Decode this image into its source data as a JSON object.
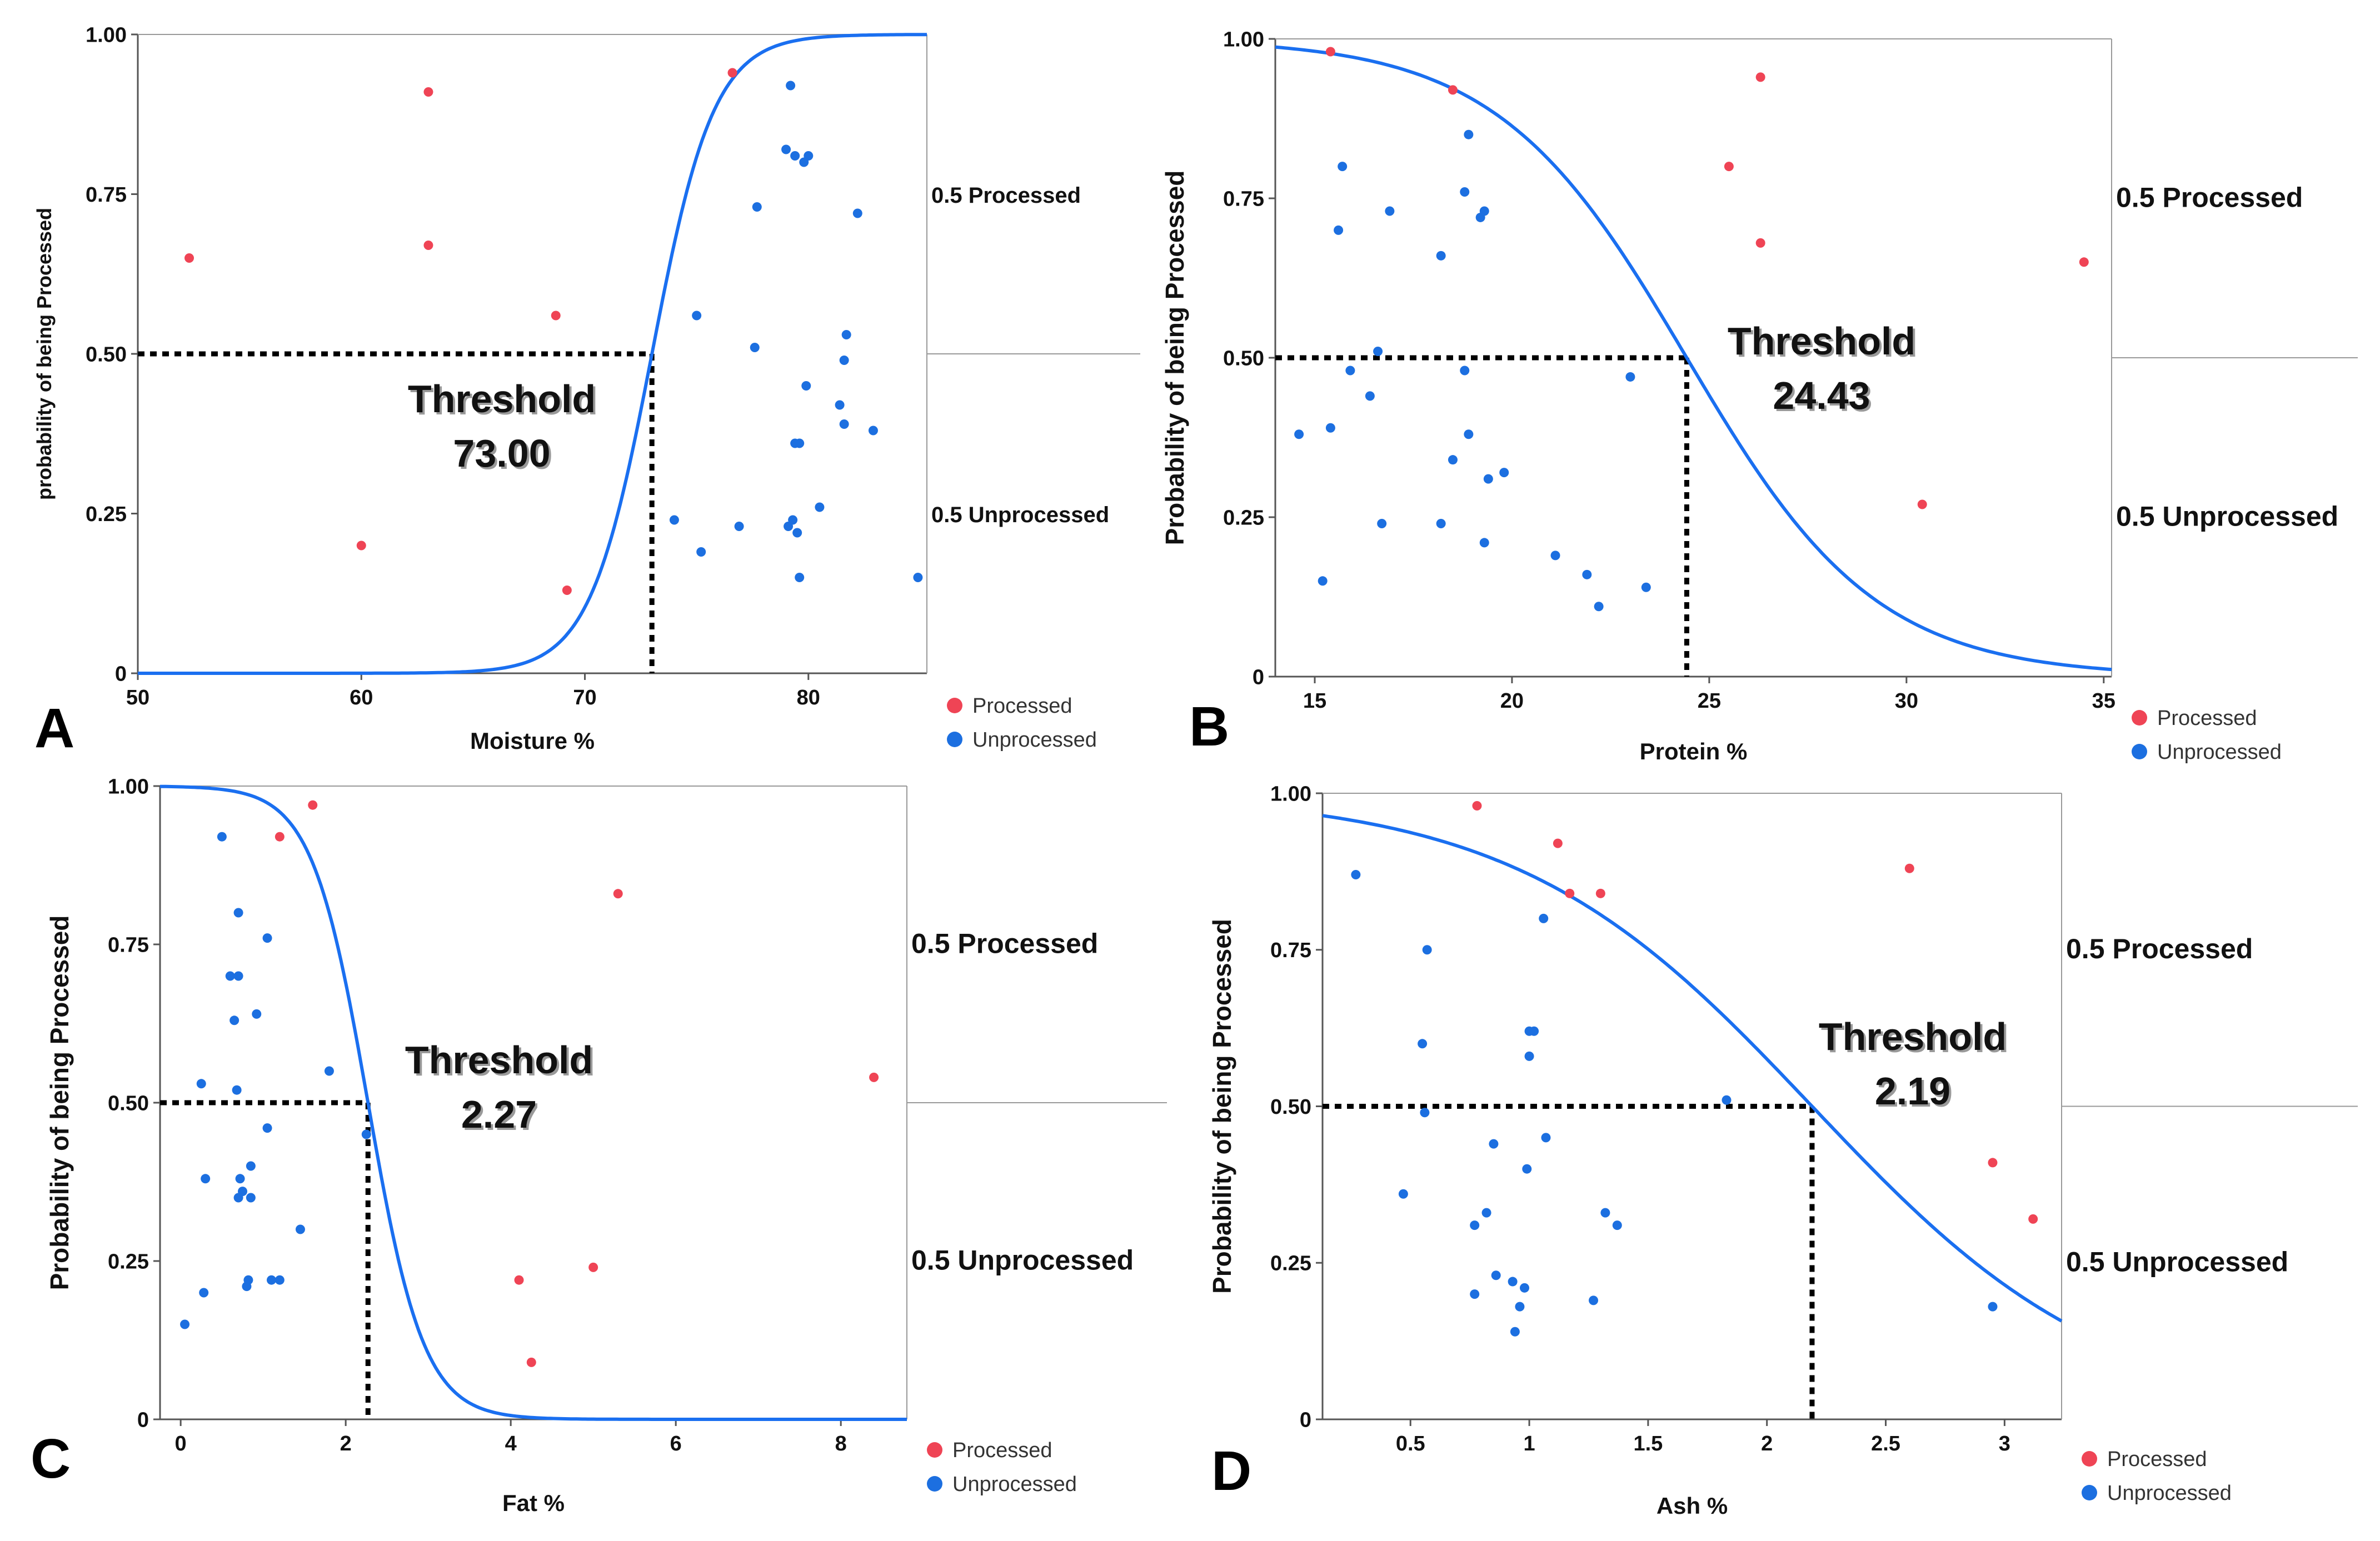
{
  "legend": {
    "processed": "Processed",
    "unprocessed": "Unprocessed"
  },
  "colors": {
    "processed": "#ef4455",
    "unprocessed": "#1c6fe0",
    "curve": "#1a6ff0",
    "axis": "#555555",
    "frame": "#999999"
  },
  "chart_data": [
    {
      "id": "A",
      "panel_letter": "A",
      "type": "scatter",
      "xlabel": "Moisture %",
      "ylabel": "probability of being Processed",
      "xlim": [
        50,
        85.3
      ],
      "ylim": [
        0,
        1
      ],
      "x_ticks": [
        50,
        60,
        70,
        80
      ],
      "y_ticks": [
        0,
        0.25,
        0.5,
        0.75,
        1
      ],
      "x_tick_labels": [
        "50",
        "60",
        "70",
        "80"
      ],
      "y_tick_labels": [
        "0",
        "0.25",
        "0.50",
        "0.75",
        "1.00"
      ],
      "right_labels": {
        "upper": "0.5 Processed",
        "lower": "0.5 Unprocessed"
      },
      "threshold": {
        "title": "Threshold",
        "value_label": "73.00",
        "x": 73.0,
        "y": 0.5
      },
      "curve": {
        "x0": 73.0,
        "k": 0.72
      },
      "series": [
        {
          "name": "Processed",
          "x": [
            52.3,
            63.0,
            63.0,
            68.7,
            69.2,
            60.0,
            76.6
          ],
          "y": [
            0.65,
            0.91,
            0.67,
            0.56,
            0.13,
            0.2,
            0.94
          ]
        },
        {
          "name": "Unprocessed",
          "x": [
            79.2,
            79.0,
            79.4,
            80.0,
            79.8,
            77.7,
            82.2,
            75.0,
            77.6,
            81.7,
            81.6,
            79.9,
            81.4,
            81.6,
            82.9,
            79.6,
            79.4,
            80.5,
            74.0,
            76.9,
            79.3,
            79.1,
            79.5,
            75.2,
            79.6,
            84.9
          ],
          "y": [
            0.92,
            0.82,
            0.81,
            0.81,
            0.8,
            0.73,
            0.72,
            0.56,
            0.51,
            0.53,
            0.49,
            0.45,
            0.42,
            0.39,
            0.38,
            0.36,
            0.36,
            0.26,
            0.24,
            0.23,
            0.24,
            0.23,
            0.22,
            0.19,
            0.15,
            0.15
          ]
        }
      ]
    },
    {
      "id": "B",
      "panel_letter": "B",
      "type": "scatter",
      "xlabel": "Protein %",
      "ylabel": "Probability of being Processed",
      "xlim": [
        14.0,
        35.2
      ],
      "ylim": [
        0,
        1
      ],
      "x_ticks": [
        15,
        20,
        25,
        30,
        35
      ],
      "y_ticks": [
        0,
        0.25,
        0.5,
        0.75,
        1
      ],
      "x_tick_labels": [
        "15",
        "20",
        "25",
        "30",
        "35"
      ],
      "y_tick_labels": [
        "0",
        "0.25",
        "0.50",
        "0.75",
        "1.00"
      ],
      "right_labels": {
        "upper": "0.5 Processed",
        "lower": "0.5 Unprocessed"
      },
      "threshold": {
        "title": "Threshold",
        "value_label": "24.43",
        "x": 24.43,
        "y": 0.5
      },
      "curve": {
        "x0": 24.43,
        "k": -0.416
      },
      "series": [
        {
          "name": "Processed",
          "x": [
            15.4,
            18.5,
            26.3,
            25.5,
            26.3,
            34.5,
            30.4
          ],
          "y": [
            0.98,
            0.92,
            0.94,
            0.8,
            0.68,
            0.65,
            0.27
          ]
        },
        {
          "name": "Unprocessed",
          "x": [
            18.9,
            15.7,
            18.8,
            19.3,
            19.2,
            16.9,
            15.6,
            18.2,
            16.6,
            15.9,
            18.8,
            16.4,
            23.0,
            14.6,
            15.4,
            18.9,
            18.5,
            19.8,
            19.4,
            16.7,
            18.2,
            19.3,
            21.1,
            21.9,
            23.4,
            15.2,
            22.2
          ],
          "y": [
            0.85,
            0.8,
            0.76,
            0.73,
            0.72,
            0.73,
            0.7,
            0.66,
            0.51,
            0.48,
            0.48,
            0.44,
            0.47,
            0.38,
            0.39,
            0.38,
            0.34,
            0.32,
            0.31,
            0.24,
            0.24,
            0.21,
            0.19,
            0.16,
            0.14,
            0.15,
            0.11
          ]
        }
      ]
    },
    {
      "id": "C",
      "panel_letter": "C",
      "type": "scatter",
      "xlabel": "Fat %",
      "ylabel": "Probability of being Processed",
      "xlim": [
        -0.25,
        8.8
      ],
      "ylim": [
        0,
        1
      ],
      "x_ticks": [
        0,
        2,
        4,
        6,
        8
      ],
      "y_ticks": [
        0,
        0.25,
        0.5,
        0.75,
        1
      ],
      "x_tick_labels": [
        "0",
        "2",
        "4",
        "6",
        "8"
      ],
      "y_tick_labels": [
        "0",
        "0.25",
        "0.50",
        "0.75",
        "1.00"
      ],
      "right_labels": {
        "upper": "0.5 Processed",
        "lower": "0.5 Unprocessed"
      },
      "threshold": {
        "title": "Threshold",
        "value_label": "2.27",
        "x": 2.27,
        "y": 0.5
      },
      "curve": {
        "x0": 2.27,
        "k": -2.95
      },
      "series": [
        {
          "name": "Processed",
          "x": [
            1.6,
            1.2,
            5.3,
            8.4,
            5.0,
            4.1,
            4.25
          ],
          "y": [
            0.97,
            0.92,
            0.83,
            0.54,
            0.24,
            0.22,
            0.09
          ]
        },
        {
          "name": "Unprocessed",
          "x": [
            0.5,
            0.7,
            1.05,
            0.6,
            0.7,
            0.65,
            0.92,
            1.8,
            0.25,
            0.68,
            1.05,
            0.85,
            0.72,
            0.75,
            0.85,
            0.3,
            0.7,
            1.45,
            1.1,
            1.2,
            0.82,
            0.8,
            0.28,
            0.05,
            2.25
          ],
          "y": [
            0.92,
            0.8,
            0.76,
            0.7,
            0.7,
            0.63,
            0.64,
            0.55,
            0.53,
            0.52,
            0.46,
            0.4,
            0.38,
            0.36,
            0.35,
            0.38,
            0.35,
            0.3,
            0.22,
            0.22,
            0.22,
            0.21,
            0.2,
            0.15,
            0.45
          ]
        }
      ]
    },
    {
      "id": "D",
      "panel_letter": "D",
      "type": "scatter",
      "xlabel": "Ash %",
      "ylabel": "Probability of being Processed",
      "xlim": [
        0.13,
        3.24
      ],
      "ylim": [
        0,
        1
      ],
      "x_ticks": [
        0.5,
        1,
        1.5,
        2,
        2.5,
        3
      ],
      "y_ticks": [
        0,
        0.25,
        0.5,
        0.75,
        1
      ],
      "x_tick_labels": [
        "0.5",
        "1",
        "1.5",
        "2",
        "2.5",
        "3"
      ],
      "y_tick_labels": [
        "0",
        "0.25",
        "0.50",
        "0.75",
        "1.00"
      ],
      "right_labels": {
        "upper": "0.5 Processed",
        "lower": "0.5 Unprocessed"
      },
      "threshold": {
        "title": "Threshold",
        "value_label": "2.19",
        "x": 2.19,
        "y": 0.5
      },
      "curve": {
        "x0": 2.19,
        "k": -1.6
      },
      "series": [
        {
          "name": "Processed",
          "x": [
            0.78,
            1.12,
            1.17,
            1.3,
            2.6,
            2.95,
            3.12
          ],
          "y": [
            0.98,
            0.92,
            0.84,
            0.84,
            0.88,
            0.41,
            0.32
          ]
        },
        {
          "name": "Unprocessed",
          "x": [
            0.27,
            1.06,
            0.57,
            1.02,
            1.0,
            0.55,
            1.0,
            0.56,
            1.83,
            1.07,
            0.85,
            0.99,
            0.47,
            1.32,
            0.82,
            0.77,
            1.37,
            0.86,
            0.93,
            0.98,
            0.77,
            1.27,
            0.96,
            0.94,
            2.95
          ],
          "y": [
            0.87,
            0.8,
            0.75,
            0.62,
            0.58,
            0.6,
            0.62,
            0.49,
            0.51,
            0.45,
            0.44,
            0.4,
            0.36,
            0.33,
            0.33,
            0.31,
            0.31,
            0.23,
            0.22,
            0.21,
            0.2,
            0.19,
            0.18,
            0.14,
            0.18
          ]
        }
      ]
    }
  ]
}
